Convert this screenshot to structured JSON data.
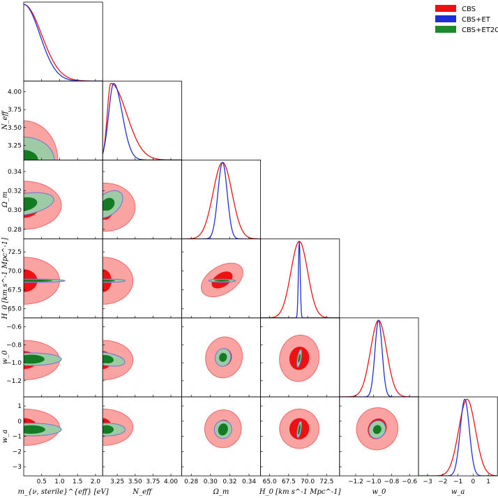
{
  "chart_data": {
    "type": "scatter",
    "subtype": "triangle-corner-plot",
    "colors": {
      "CBS": "#ee1111",
      "CBS+ET": "#1f2fd6",
      "CBS+ET2CE": "#1e8a2c"
    },
    "legend": {
      "placement": "top-right",
      "entries": [
        "CBS",
        "CBS+ET",
        "CBS+ET2CE"
      ]
    },
    "parameters": [
      {
        "id": "m",
        "label": "m_{ν, sterile}^{eff} [eV]",
        "range": [
          0.0,
          2.2
        ],
        "ticks": [
          0.5,
          1.0,
          1.5,
          2.0
        ],
        "tick_labels": [
          "0.5",
          "1.0",
          "1.5",
          "2.0"
        ]
      },
      {
        "id": "neff",
        "label": "N_eff",
        "range": [
          3.046,
          4.15
        ],
        "ticks": [
          3.25,
          3.5,
          3.75,
          4.0
        ],
        "tick_labels": [
          "3.25",
          "3.50",
          "3.75",
          "4.00"
        ]
      },
      {
        "id": "om",
        "label": "Ω_m",
        "range": [
          0.27,
          0.352
        ],
        "ticks": [
          0.28,
          0.3,
          0.32,
          0.34
        ],
        "tick_labels": [
          "0.28",
          "0.30",
          "0.32",
          "0.34"
        ]
      },
      {
        "id": "h0",
        "label": "H_0 [km s^-1 Mpc^-1]",
        "range": [
          63.8,
          74.2
        ],
        "ticks": [
          65.0,
          67.5,
          70.0,
          72.5
        ],
        "tick_labels": [
          "65.0",
          "67.5",
          "70.0",
          "72.5"
        ]
      },
      {
        "id": "w0",
        "label": "w_0",
        "range": [
          -1.38,
          -0.5
        ],
        "ticks": [
          -1.2,
          -1.0,
          -0.8,
          -0.6
        ],
        "tick_labels": [
          "−1.2",
          "−1.0",
          "−0.8",
          "−0.6"
        ]
      },
      {
        "id": "wa",
        "label": "w_a",
        "range": [
          -3.6,
          1.6
        ],
        "ticks": [
          -3,
          -2,
          -1,
          0,
          1
        ],
        "tick_labels": [
          "−3",
          "−2",
          "−1",
          "0",
          "1"
        ]
      }
    ],
    "marginals": {
      "m": {
        "CBS": {
          "shape": "halfnormal",
          "scale": 0.5
        },
        "CBS+ET": {
          "shape": "halfnormal",
          "scale": 0.45
        }
      },
      "neff": {
        "CBS": {
          "shape": "skewpeak",
          "peak": 3.16,
          "left": 0.05,
          "right": 0.22
        },
        "CBS+ET": {
          "shape": "skewpeak",
          "peak": 3.2,
          "left": 0.07,
          "right": 0.12
        }
      },
      "om": {
        "CBS": {
          "shape": "gaussian",
          "mean": 0.3125,
          "sigma": 0.0098
        },
        "CBS+ET": {
          "shape": "gaussian",
          "mean": 0.3125,
          "sigma": 0.0048
        }
      },
      "h0": {
        "CBS": {
          "shape": "gaussian",
          "mean": 68.9,
          "sigma": 1.1
        },
        "CBS+ET": {
          "shape": "gaussian",
          "mean": 68.9,
          "sigma": 0.12
        }
      },
      "w0": {
        "CBS": {
          "shape": "gaussian",
          "mean": -0.945,
          "sigma": 0.09
        },
        "CBS+ET": {
          "shape": "gaussian",
          "mean": -0.945,
          "sigma": 0.04
        }
      },
      "wa": {
        "CBS": {
          "shape": "gaussian",
          "mean": -0.4,
          "sigma": 0.55
        },
        "CBS+ET": {
          "shape": "gaussian",
          "mean": -0.55,
          "sigma": 0.3
        }
      }
    },
    "contours_2d": [
      {
        "x": "m",
        "y": "neff",
        "CBS": {
          "center": [
            0.0,
            3.046
          ],
          "one_sigma": [
            0.42,
            0.22
          ],
          "two_sigma": [
            0.95,
            0.55
          ],
          "tilt_deg": 0
        },
        "CBS+ET": {
          "center": [
            0.0,
            3.046
          ],
          "one_sigma": [
            0.4,
            0.14
          ],
          "two_sigma": [
            0.85,
            0.32
          ],
          "tilt_deg": 0
        }
      },
      {
        "x": "m",
        "y": "om",
        "CBS": {
          "center": [
            0.0,
            0.305
          ],
          "one_sigma": [
            0.45,
            0.013
          ],
          "two_sigma": [
            1.05,
            0.025
          ],
          "tilt_deg": 0
        },
        "CBS+ET": {
          "center": [
            0.0,
            0.306
          ],
          "one_sigma": [
            0.38,
            0.007
          ],
          "two_sigma": [
            0.85,
            0.011
          ],
          "tilt_deg": 10
        }
      },
      {
        "x": "m",
        "y": "h0",
        "CBS": {
          "center": [
            0.0,
            68.7
          ],
          "one_sigma": [
            0.38,
            1.5
          ],
          "two_sigma": [
            1.0,
            3.1
          ],
          "tilt_deg": 0
        },
        "CBS+ET": {
          "center": [
            0.25,
            68.7
          ],
          "one_sigma": [
            0.55,
            0.15
          ],
          "two_sigma": [
            0.9,
            0.22
          ],
          "tilt_deg": 0
        }
      },
      {
        "x": "m",
        "y": "w0",
        "CBS": {
          "center": [
            0.0,
            -0.97
          ],
          "one_sigma": [
            0.38,
            0.1
          ],
          "two_sigma": [
            1.0,
            0.22
          ],
          "tilt_deg": 0
        },
        "CBS+ET": {
          "center": [
            0.2,
            -0.96
          ],
          "one_sigma": [
            0.38,
            0.05
          ],
          "two_sigma": [
            0.85,
            0.07
          ],
          "tilt_deg": 0
        }
      },
      {
        "x": "m",
        "y": "wa",
        "CBS": {
          "center": [
            0.0,
            -0.4
          ],
          "one_sigma": [
            0.38,
            0.6
          ],
          "two_sigma": [
            1.0,
            1.2
          ],
          "tilt_deg": 0
        },
        "CBS+ET": {
          "center": [
            0.2,
            -0.55
          ],
          "one_sigma": [
            0.4,
            0.28
          ],
          "two_sigma": [
            0.85,
            0.42
          ],
          "tilt_deg": 0
        }
      },
      {
        "x": "neff",
        "y": "om",
        "CBS": {
          "center": [
            3.08,
            0.303
          ],
          "one_sigma": [
            0.12,
            0.013
          ],
          "two_sigma": [
            0.42,
            0.025
          ],
          "tilt_deg": 0
        },
        "CBS+ET": {
          "center": [
            3.12,
            0.306
          ],
          "one_sigma": [
            0.1,
            0.006
          ],
          "two_sigma": [
            0.24,
            0.011
          ],
          "tilt_deg": 40
        }
      },
      {
        "x": "neff",
        "y": "h0",
        "CBS": {
          "center": [
            3.05,
            68.7
          ],
          "one_sigma": [
            0.12,
            1.5
          ],
          "two_sigma": [
            0.42,
            3.1
          ],
          "tilt_deg": 0
        },
        "CBS+ET": {
          "center": [
            3.1,
            68.7
          ],
          "one_sigma": [
            0.12,
            0.14
          ],
          "two_sigma": [
            0.26,
            0.22
          ],
          "tilt_deg": 0
        }
      },
      {
        "x": "neff",
        "y": "w0",
        "CBS": {
          "center": [
            3.05,
            -0.97
          ],
          "one_sigma": [
            0.12,
            0.1
          ],
          "two_sigma": [
            0.42,
            0.22
          ],
          "tilt_deg": 0
        },
        "CBS+ET": {
          "center": [
            3.1,
            -0.96
          ],
          "one_sigma": [
            0.1,
            0.045
          ],
          "two_sigma": [
            0.26,
            0.07
          ],
          "tilt_deg": -10
        }
      },
      {
        "x": "neff",
        "y": "wa",
        "CBS": {
          "center": [
            3.05,
            -0.4
          ],
          "one_sigma": [
            0.12,
            0.6
          ],
          "two_sigma": [
            0.42,
            1.2
          ],
          "tilt_deg": 0
        },
        "CBS+ET": {
          "center": [
            3.1,
            -0.55
          ],
          "one_sigma": [
            0.1,
            0.28
          ],
          "two_sigma": [
            0.26,
            0.42
          ],
          "tilt_deg": 0
        }
      },
      {
        "x": "om",
        "y": "h0",
        "CBS": {
          "center": [
            0.312,
            68.8
          ],
          "one_sigma": [
            0.012,
            0.9
          ],
          "two_sigma": [
            0.024,
            1.8
          ],
          "tilt_deg": 32
        },
        "CBS+ET": {
          "center": [
            0.312,
            68.7
          ],
          "one_sigma": [
            0.008,
            0.12
          ],
          "two_sigma": [
            0.014,
            0.2
          ],
          "tilt_deg": 0
        }
      },
      {
        "x": "om",
        "y": "w0",
        "CBS": {
          "center": [
            0.314,
            -0.94
          ],
          "one_sigma": [
            0.008,
            0.1
          ],
          "two_sigma": [
            0.019,
            0.23
          ],
          "tilt_deg": -15
        },
        "CBS+ET": {
          "center": [
            0.313,
            -0.94
          ],
          "one_sigma": [
            0.004,
            0.05
          ],
          "two_sigma": [
            0.008,
            0.1
          ],
          "tilt_deg": -15
        }
      },
      {
        "x": "om",
        "y": "wa",
        "CBS": {
          "center": [
            0.313,
            -0.5
          ],
          "one_sigma": [
            0.008,
            0.6
          ],
          "two_sigma": [
            0.019,
            1.25
          ],
          "tilt_deg": -15
        },
        "CBS+ET": {
          "center": [
            0.313,
            -0.55
          ],
          "one_sigma": [
            0.005,
            0.4
          ],
          "two_sigma": [
            0.009,
            0.6
          ],
          "tilt_deg": -15
        }
      },
      {
        "x": "h0",
        "y": "w0",
        "CBS": {
          "center": [
            68.9,
            -0.95
          ],
          "one_sigma": [
            1.3,
            0.13
          ],
          "two_sigma": [
            2.6,
            0.26
          ],
          "tilt_deg": -10
        },
        "CBS+ET": {
          "center": [
            68.9,
            -0.95
          ],
          "one_sigma": [
            0.12,
            0.05
          ],
          "two_sigma": [
            0.25,
            0.1
          ],
          "tilt_deg": -10
        }
      },
      {
        "x": "h0",
        "y": "wa",
        "CBS": {
          "center": [
            68.9,
            -0.5
          ],
          "one_sigma": [
            1.3,
            0.7
          ],
          "two_sigma": [
            2.6,
            1.3
          ],
          "tilt_deg": -10
        },
        "CBS+ET": {
          "center": [
            68.9,
            -0.55
          ],
          "one_sigma": [
            0.12,
            0.35
          ],
          "two_sigma": [
            0.25,
            0.55
          ],
          "tilt_deg": -10
        }
      },
      {
        "x": "w0",
        "y": "wa",
        "CBS": {
          "center": [
            -0.96,
            -0.5
          ],
          "one_sigma": [
            0.1,
            0.7
          ],
          "two_sigma": [
            0.23,
            1.4
          ],
          "tilt_deg": -30
        },
        "CBS+ET": {
          "center": [
            -0.96,
            -0.55
          ],
          "one_sigma": [
            0.045,
            0.3
          ],
          "two_sigma": [
            0.09,
            0.6
          ],
          "tilt_deg": -30
        }
      }
    ]
  }
}
